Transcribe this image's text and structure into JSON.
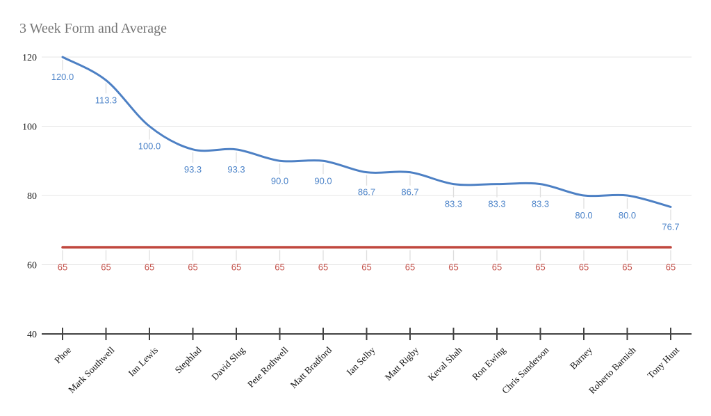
{
  "chart_data": {
    "type": "line",
    "title": "3 Week Form and Average",
    "categories": [
      "Phoe",
      "Mark Southwell",
      "Ian Lewis",
      "Stephlad",
      "David Slug",
      "Pete Rothwell",
      "Matt Bradford",
      "Ian Selby",
      "Matt Rigby",
      "Keval Shah",
      "Ron Ewing",
      "Chris Sanderson",
      "Barney",
      "Roberto Barnish",
      "Tony Hunt"
    ],
    "series": [
      {
        "values": [
          120.0,
          113.3,
          100.0,
          93.3,
          93.3,
          90.0,
          90.0,
          86.7,
          86.7,
          83.3,
          83.3,
          83.3,
          80.0,
          80.0,
          76.7
        ],
        "labels": [
          "120.0",
          "113.3",
          "100.0",
          "93.3",
          "93.3",
          "90.0",
          "90.0",
          "86.7",
          "86.7",
          "83.3",
          "83.3",
          "83.3",
          "80.0",
          "80.0",
          "76.7"
        ],
        "color": "#4d80c4",
        "label_color": "#4d84c9",
        "smooth": true,
        "width": 3
      },
      {
        "values": [
          65,
          65,
          65,
          65,
          65,
          65,
          65,
          65,
          65,
          65,
          65,
          65,
          65,
          65,
          65
        ],
        "labels": [
          "65",
          "65",
          "65",
          "65",
          "65",
          "65",
          "65",
          "65",
          "65",
          "65",
          "65",
          "65",
          "65",
          "65",
          "65"
        ],
        "color": "#c0473e",
        "label_color": "#c4534c",
        "smooth": false,
        "width": 3.5
      }
    ],
    "ylim": [
      40,
      120
    ],
    "yticks": [
      40,
      60,
      80,
      100,
      120
    ],
    "ytick_labels": [
      "40",
      "60",
      "80",
      "100",
      "120"
    ],
    "xlabel": "",
    "ylabel": "",
    "grid": true,
    "legend": "none"
  },
  "colors": {
    "background": "#ffffff",
    "grid": "#e6e6e6",
    "axis": "#424242",
    "leader": "#dedede",
    "title": "#757575"
  }
}
